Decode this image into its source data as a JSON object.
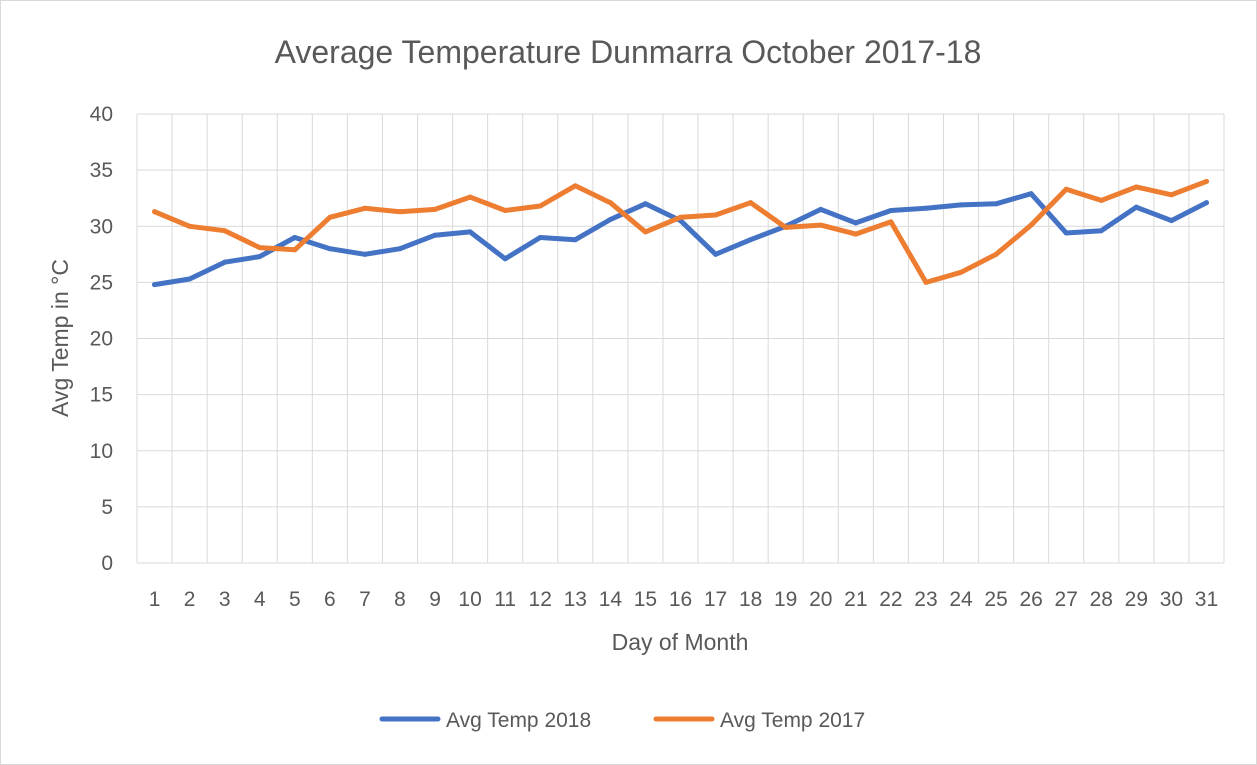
{
  "chart_data": {
    "type": "line",
    "title": "Average Temperature Dunmarra October 2017-18",
    "xlabel": "Day of Month",
    "ylabel": "Avg Temp in °C",
    "ylim": [
      0,
      40
    ],
    "yticks": [
      0,
      5,
      10,
      15,
      20,
      25,
      30,
      35,
      40
    ],
    "grid": true,
    "legend_position": "bottom",
    "categories": [
      "1",
      "2",
      "3",
      "4",
      "5",
      "6",
      "7",
      "8",
      "9",
      "10",
      "11",
      "12",
      "13",
      "14",
      "15",
      "16",
      "17",
      "18",
      "19",
      "20",
      "21",
      "22",
      "23",
      "24",
      "25",
      "26",
      "27",
      "28",
      "29",
      "30",
      "31"
    ],
    "series": [
      {
        "name": "Avg Temp 2018",
        "color": "#4472C4",
        "values": [
          24.8,
          25.3,
          26.8,
          27.3,
          29.0,
          28.0,
          27.5,
          28.0,
          29.2,
          29.5,
          27.1,
          29.0,
          28.8,
          30.6,
          32.0,
          30.5,
          27.5,
          28.8,
          30.0,
          31.5,
          30.3,
          31.4,
          31.6,
          31.9,
          32.0,
          32.9,
          29.4,
          29.6,
          31.7,
          30.5,
          32.1
        ]
      },
      {
        "name": "Avg Temp 2017",
        "color": "#ED7D31",
        "values": [
          31.3,
          30.0,
          29.6,
          28.1,
          27.9,
          30.8,
          31.6,
          31.3,
          31.5,
          32.6,
          31.4,
          31.8,
          33.6,
          32.1,
          29.5,
          30.8,
          31.0,
          32.1,
          29.9,
          30.1,
          29.3,
          30.4,
          25.0,
          25.9,
          27.5,
          30.1,
          33.3,
          32.3,
          33.5,
          32.8,
          34.0
        ]
      }
    ]
  }
}
